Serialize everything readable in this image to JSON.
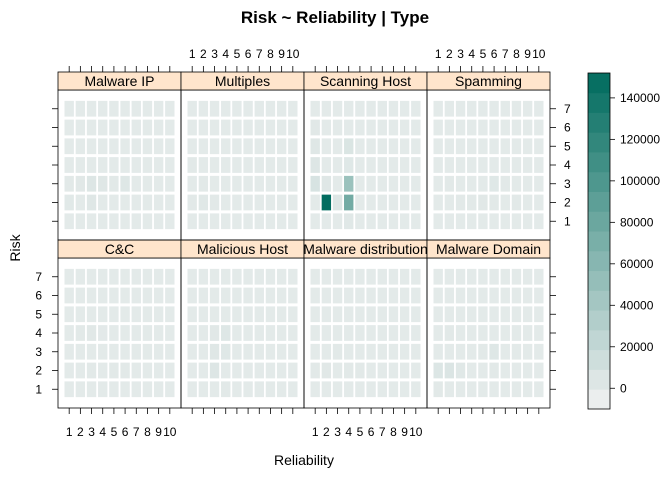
{
  "chart_data": {
    "type": "heatmap",
    "title": "Risk ~ Reliability | Type",
    "xlabel": "Reliability",
    "ylabel": "Risk",
    "x_categories": [
      "1",
      "2",
      "3",
      "4",
      "5",
      "6",
      "7",
      "8",
      "9",
      "10"
    ],
    "y_categories": [
      "1",
      "2",
      "3",
      "4",
      "5",
      "6",
      "7"
    ],
    "colorbar": {
      "ticks": [
        "0",
        "20000",
        "40000",
        "60000",
        "80000",
        "100000",
        "120000",
        "140000"
      ],
      "range": [
        -10000,
        152000
      ],
      "low_color": "#f2f2f2",
      "high_color": "#006b5e"
    },
    "panels": [
      {
        "name": "C&C",
        "cells": [
          [
            3,
            4,
            1500
          ],
          [
            3,
            2,
            600
          ],
          [
            5,
            2,
            400
          ],
          [
            6,
            2,
            400
          ],
          [
            2,
            4,
            500
          ],
          [
            4,
            4,
            300
          ]
        ]
      },
      {
        "name": "Malicious Host",
        "cells": [
          [
            3,
            2,
            4000
          ],
          [
            3,
            3,
            3000
          ],
          [
            4,
            3,
            2500
          ],
          [
            3,
            4,
            1500
          ],
          [
            4,
            4,
            3500
          ],
          [
            4,
            1,
            500
          ]
        ]
      },
      {
        "name": "Malware distribution",
        "cells": [
          [
            2,
            2,
            1500
          ],
          [
            4,
            2,
            1000
          ],
          [
            5,
            2,
            600
          ],
          [
            1,
            2,
            500
          ],
          [
            3,
            3,
            400
          ]
        ]
      },
      {
        "name": "Malware Domain",
        "cells": [
          [
            1,
            2,
            4500
          ],
          [
            2,
            2,
            5500
          ],
          [
            3,
            2,
            1800
          ],
          [
            6,
            3,
            3500
          ],
          [
            5,
            3,
            1000
          ],
          [
            6,
            2,
            1000
          ],
          [
            1,
            1,
            600
          ],
          [
            2,
            4,
            400
          ]
        ]
      },
      {
        "name": "Malware IP",
        "cells": [
          [
            1,
            2,
            1200
          ],
          [
            3,
            2,
            3000
          ],
          [
            3,
            3,
            4000
          ],
          [
            4,
            3,
            3000
          ],
          [
            6,
            3,
            3500
          ],
          [
            5,
            3,
            1000
          ],
          [
            2,
            3,
            1500
          ],
          [
            1,
            3,
            800
          ]
        ]
      },
      {
        "name": "Multiples",
        "cells": [
          [
            1,
            2,
            800
          ],
          [
            2,
            2,
            2000
          ],
          [
            3,
            2,
            1000
          ],
          [
            2,
            3,
            800
          ],
          [
            1,
            4,
            500
          ]
        ]
      },
      {
        "name": "Scanning Host",
        "cells": [
          [
            1,
            4,
            4000
          ],
          [
            1,
            3,
            8000
          ],
          [
            2,
            2,
            150000
          ],
          [
            3,
            2,
            4000
          ],
          [
            4,
            2,
            75000
          ],
          [
            4,
            3,
            48000
          ],
          [
            4,
            5,
            6000
          ],
          [
            1,
            5,
            3000
          ],
          [
            2,
            3,
            3000
          ],
          [
            4,
            1,
            2000
          ],
          [
            1,
            6,
            1500
          ],
          [
            4,
            4,
            2500
          ]
        ]
      },
      {
        "name": "Spamming",
        "cells": [
          [
            3,
            2,
            1000
          ],
          [
            5,
            2,
            1500
          ],
          [
            6,
            3,
            2500
          ],
          [
            6,
            2,
            1000
          ],
          [
            8,
            2,
            500
          ],
          [
            2,
            3,
            500
          ],
          [
            4,
            2,
            800
          ],
          [
            7,
            3,
            600
          ]
        ]
      }
    ]
  }
}
